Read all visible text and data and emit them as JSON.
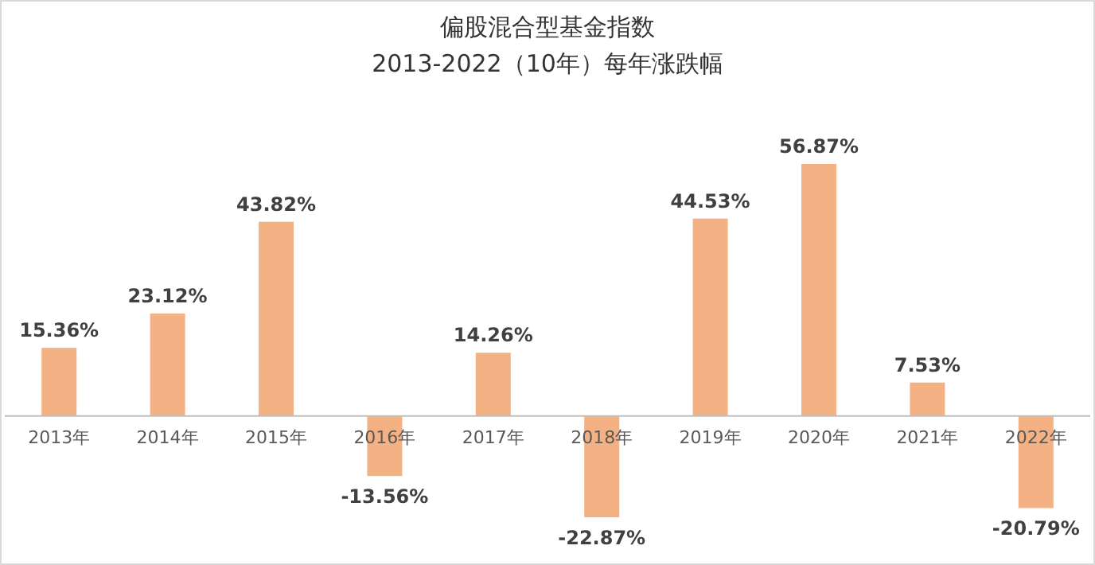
{
  "chart_data": {
    "type": "bar",
    "title": "偏股混合型基金指数",
    "subtitle": "2013-2022（10年）每年涨跌幅",
    "categories": [
      "2013年",
      "2014年",
      "2015年",
      "2016年",
      "2017年",
      "2018年",
      "2019年",
      "2020年",
      "2021年",
      "2022年"
    ],
    "values": [
      15.36,
      23.12,
      43.82,
      -13.56,
      14.26,
      -22.87,
      44.53,
      56.87,
      7.53,
      -20.79
    ],
    "value_labels": [
      "15.36%",
      "23.12%",
      "43.82%",
      "-13.56%",
      "14.26%",
      "-22.87%",
      "44.53%",
      "56.87%",
      "7.53%",
      "-20.79%"
    ],
    "color": "#f4b183"
  }
}
